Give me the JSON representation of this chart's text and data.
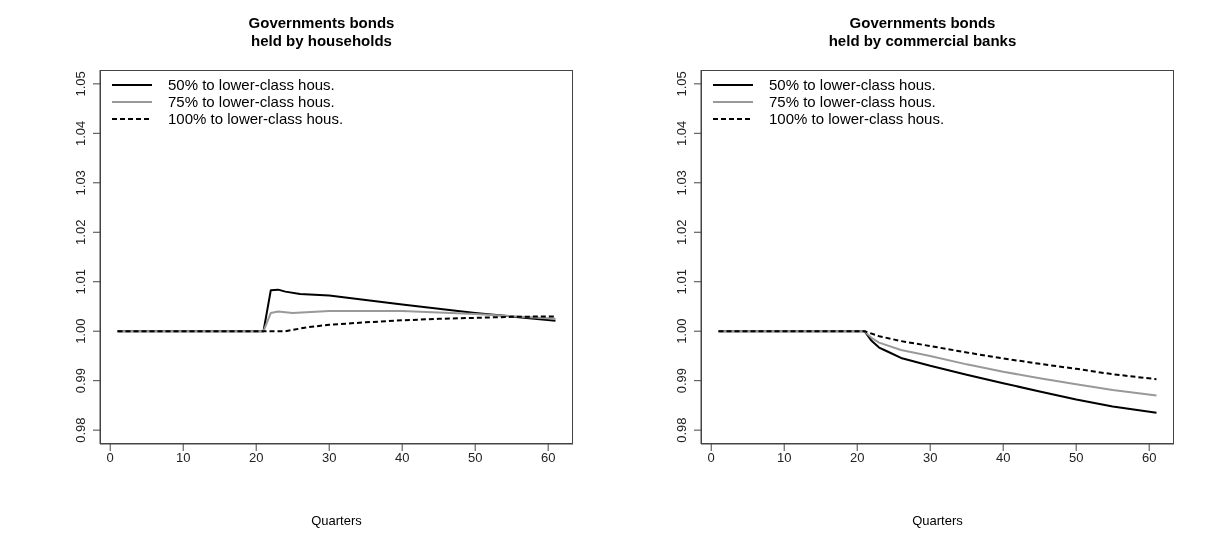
{
  "chart_data": [
    {
      "type": "line",
      "title": "Governments bonds\nheld by households",
      "xlabel": "Quarters",
      "legend": "top left",
      "xlim": [
        -1.4,
        63.4
      ],
      "xticks": [
        0,
        10,
        20,
        30,
        40,
        50,
        60
      ],
      "ylim": [
        0.9772,
        1.0528
      ],
      "yticks": [
        {
          "value": 0.98,
          "label": "0.98"
        },
        {
          "value": 0.99,
          "label": "0.99"
        },
        {
          "value": 1,
          "label": "1.00"
        },
        {
          "value": 1.01,
          "label": "1.01"
        },
        {
          "value": 1.02,
          "label": "1.02"
        },
        {
          "value": 1.03,
          "label": "1.03"
        },
        {
          "value": 1.04,
          "label": "1.04"
        },
        {
          "value": 1.05,
          "label": "1.05"
        }
      ],
      "grid": false,
      "marker": "none",
      "series": [
        {
          "name": "50% to lower-class hous.",
          "color": "#000000",
          "line_style": "solid",
          "x": [
            1,
            21,
            22,
            23,
            24,
            26,
            30,
            40,
            50,
            61
          ],
          "values": [
            1,
            1,
            1.0083,
            1.0084,
            1.008,
            1.0075,
            1.0072,
            1.0054,
            1.0037,
            1.0021
          ]
        },
        {
          "name": "75% to lower-class hous.",
          "color": "#999999",
          "line_style": "solid",
          "x": [
            1,
            21,
            22,
            23,
            25,
            30,
            40,
            50,
            61
          ],
          "values": [
            1,
            1,
            1.0037,
            1.004,
            1.0037,
            1.0041,
            1.0041,
            1.0035,
            1.0025
          ]
        },
        {
          "name": "100% to lower-class hous.",
          "color": "#000000",
          "line_style": "dashed",
          "x": [
            1,
            21,
            24,
            27,
            30,
            35,
            40,
            45,
            50,
            55,
            61
          ],
          "values": [
            1,
            1,
            1,
            1.0008,
            1.0013,
            1.0018,
            1.0022,
            1.0025,
            1.0027,
            1.0029,
            1.003
          ]
        }
      ]
    },
    {
      "type": "line",
      "title": "Governments bonds\nheld by commercial banks",
      "xlabel": "Quarters",
      "legend": "top left",
      "xlim": [
        -1.4,
        63.4
      ],
      "xticks": [
        0,
        10,
        20,
        30,
        40,
        50,
        60
      ],
      "ylim": [
        0.9772,
        1.0528
      ],
      "yticks": [
        {
          "value": 0.98,
          "label": "0.98"
        },
        {
          "value": 0.99,
          "label": "0.99"
        },
        {
          "value": 1,
          "label": "1.00"
        },
        {
          "value": 1.01,
          "label": "1.01"
        },
        {
          "value": 1.02,
          "label": "1.02"
        },
        {
          "value": 1.03,
          "label": "1.03"
        },
        {
          "value": 1.04,
          "label": "1.04"
        },
        {
          "value": 1.05,
          "label": "1.05"
        }
      ],
      "grid": false,
      "marker": "none",
      "series": [
        {
          "name": "50% to lower-class hous.",
          "color": "#000000",
          "line_style": "solid",
          "x": [
            1,
            21,
            22,
            23,
            24,
            26,
            30,
            35,
            40,
            45,
            50,
            55,
            61
          ],
          "values": [
            1,
            1,
            0.998,
            0.9967,
            0.996,
            0.9946,
            0.993,
            0.9912,
            0.9895,
            0.9878,
            0.9862,
            0.9848,
            0.9835
          ]
        },
        {
          "name": "75% to lower-class hous.",
          "color": "#999999",
          "line_style": "solid",
          "x": [
            1,
            21,
            22,
            23,
            26,
            30,
            35,
            40,
            45,
            50,
            55,
            61
          ],
          "values": [
            1,
            1,
            0.9986,
            0.9977,
            0.9962,
            0.995,
            0.9933,
            0.9918,
            0.9905,
            0.9893,
            0.9881,
            0.987
          ]
        },
        {
          "name": "100% to lower-class hous.",
          "color": "#000000",
          "line_style": "dashed",
          "x": [
            1,
            21,
            23,
            26,
            30,
            35,
            40,
            45,
            50,
            55,
            61
          ],
          "values": [
            1,
            1,
            0.999,
            0.998,
            0.997,
            0.9957,
            0.9945,
            0.9934,
            0.9924,
            0.9913,
            0.9903
          ]
        }
      ]
    }
  ]
}
